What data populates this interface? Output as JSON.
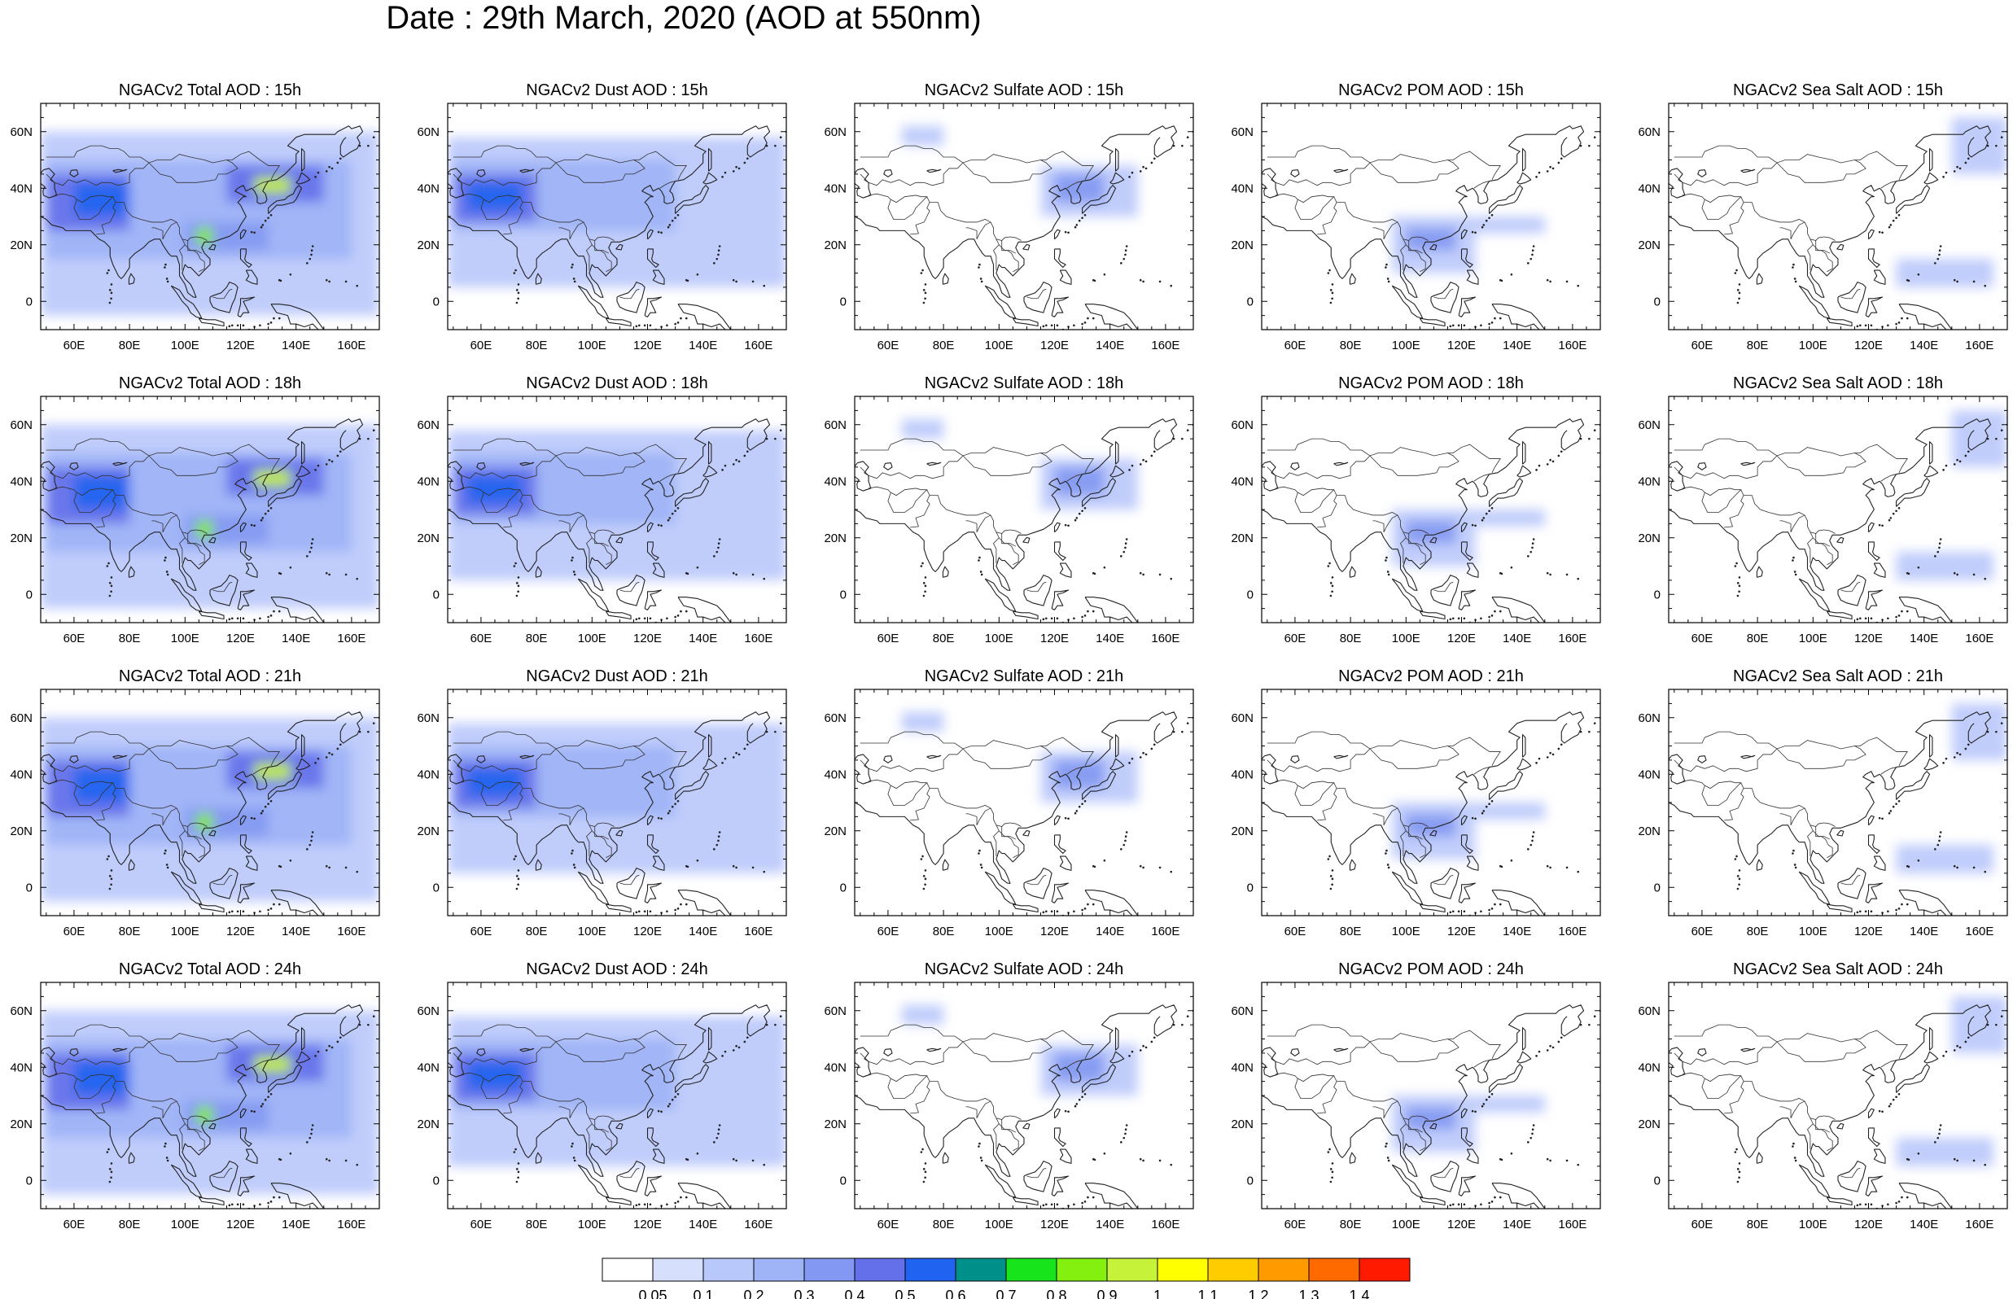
{
  "title": "Date : 29th March, 2020 (AOD at 550nm)",
  "rows": [
    "15h",
    "18h",
    "21h",
    "24h"
  ],
  "columns": [
    {
      "key": "total",
      "name": "NGACv2 Total AOD"
    },
    {
      "key": "dust",
      "name": "NGACv2 Dust AOD"
    },
    {
      "key": "sulfate",
      "name": "NGACv2 Sulfate AOD"
    },
    {
      "key": "pom",
      "name": "NGACv2 POM AOD"
    },
    {
      "key": "seasalt",
      "name": "NGACv2 Sea Salt AOD"
    }
  ],
  "panel_titles": [
    [
      "NGACv2 Total AOD : 15h",
      "NGACv2 Dust AOD : 15h",
      "NGACv2 Sulfate AOD : 15h",
      "NGACv2 POM AOD : 15h",
      "NGACv2 Sea Salt AOD : 15h"
    ],
    [
      "NGACv2 Total AOD : 18h",
      "NGACv2 Dust AOD : 18h",
      "NGACv2 Sulfate AOD : 18h",
      "NGACv2 POM AOD : 18h",
      "NGACv2 Sea Salt AOD : 18h"
    ],
    [
      "NGACv2 Total AOD : 21h",
      "NGACv2 Dust AOD : 21h",
      "NGACv2 Sulfate AOD : 21h",
      "NGACv2 POM AOD : 21h",
      "NGACv2 Sea Salt AOD : 21h"
    ],
    [
      "NGACv2 Total AOD : 24h",
      "NGACv2 Dust AOD : 24h",
      "NGACv2 Sulfate AOD : 24h",
      "NGACv2 POM AOD : 24h",
      "NGACv2 Sea Salt  AOD : 24h"
    ]
  ],
  "map": {
    "lon_range": [
      48,
      170
    ],
    "lat_range": [
      -10,
      70
    ],
    "lon_ticks": [
      "60E",
      "80E",
      "100E",
      "120E",
      "140E",
      "160E"
    ],
    "lat_ticks": [
      "60N",
      "40N",
      "20N",
      "0"
    ]
  },
  "colorbar": {
    "labels": [
      "0.05",
      "0.1",
      "0.2",
      "0.3",
      "0.4",
      "0.5",
      "0.6",
      "0.7",
      "0.8",
      "0.9",
      "1",
      "1.1",
      "1.2",
      "1.3",
      "1.4"
    ],
    "colors": [
      "#ffffff",
      "#d6e0fc",
      "#b9c8fb",
      "#9fb3f7",
      "#8398f2",
      "#6470ea",
      "#1f63f0",
      "#00908a",
      "#17e41a",
      "#84f010",
      "#c6f23a",
      "#ffff00",
      "#ffcc00",
      "#ff9a00",
      "#ff6a00",
      "#ff1a00"
    ]
  },
  "chart_data": {
    "type": "heatmap",
    "title": "Date : 29th March, 2020 (AOD at 550nm)",
    "variable": "AOD at 550nm",
    "domain_lon": [
      48,
      170
    ],
    "domain_lat": [
      -10,
      70
    ],
    "aod_fields": {
      "total": [
        {
          "lon": [
            48,
            170
          ],
          "lat": [
            -5,
            60
          ],
          "aod": 0.1
        },
        {
          "lon": [
            50,
            160
          ],
          "lat": [
            15,
            50
          ],
          "aod": 0.2
        },
        {
          "lon": [
            50,
            80
          ],
          "lat": [
            25,
            45
          ],
          "aod": 0.4
        },
        {
          "lon": [
            60,
            80
          ],
          "lat": [
            30,
            42
          ],
          "aod": 0.5
        },
        {
          "lon": [
            100,
            130
          ],
          "lat": [
            18,
            28
          ],
          "aod": 0.35
        },
        {
          "lon": [
            115,
            150
          ],
          "lat": [
            35,
            48
          ],
          "aod": 0.45
        },
        {
          "lon": [
            125,
            138
          ],
          "lat": [
            38,
            44
          ],
          "aod": 0.9
        },
        {
          "lon": [
            104,
            110
          ],
          "lat": [
            20,
            26
          ],
          "aod": 0.8
        }
      ],
      "dust": [
        {
          "lon": [
            48,
            170
          ],
          "lat": [
            5,
            58
          ],
          "aod": 0.1
        },
        {
          "lon": [
            50,
            130
          ],
          "lat": [
            25,
            50
          ],
          "aod": 0.2
        },
        {
          "lon": [
            50,
            80
          ],
          "lat": [
            28,
            45
          ],
          "aod": 0.4
        },
        {
          "lon": [
            55,
            75
          ],
          "lat": [
            32,
            42
          ],
          "aod": 0.5
        }
      ],
      "sulfate": [
        {
          "lon": [
            65,
            80
          ],
          "lat": [
            55,
            62
          ],
          "aod": 0.1
        },
        {
          "lon": [
            115,
            150
          ],
          "lat": [
            30,
            48
          ],
          "aod": 0.1
        },
        {
          "lon": [
            120,
            138
          ],
          "lat": [
            35,
            45
          ],
          "aod": 0.3
        }
      ],
      "pom": [
        {
          "lon": [
            95,
            125
          ],
          "lat": [
            10,
            30
          ],
          "aod": 0.1
        },
        {
          "lon": [
            100,
            118
          ],
          "lat": [
            18,
            26
          ],
          "aod": 0.3
        },
        {
          "lon": [
            125,
            150
          ],
          "lat": [
            24,
            30
          ],
          "aod": 0.1
        }
      ],
      "seasalt": [
        {
          "lon": [
            150,
            170
          ],
          "lat": [
            45,
            65
          ],
          "aod": 0.1
        },
        {
          "lon": [
            130,
            165
          ],
          "lat": [
            5,
            15
          ],
          "aod": 0.1
        }
      ]
    }
  }
}
